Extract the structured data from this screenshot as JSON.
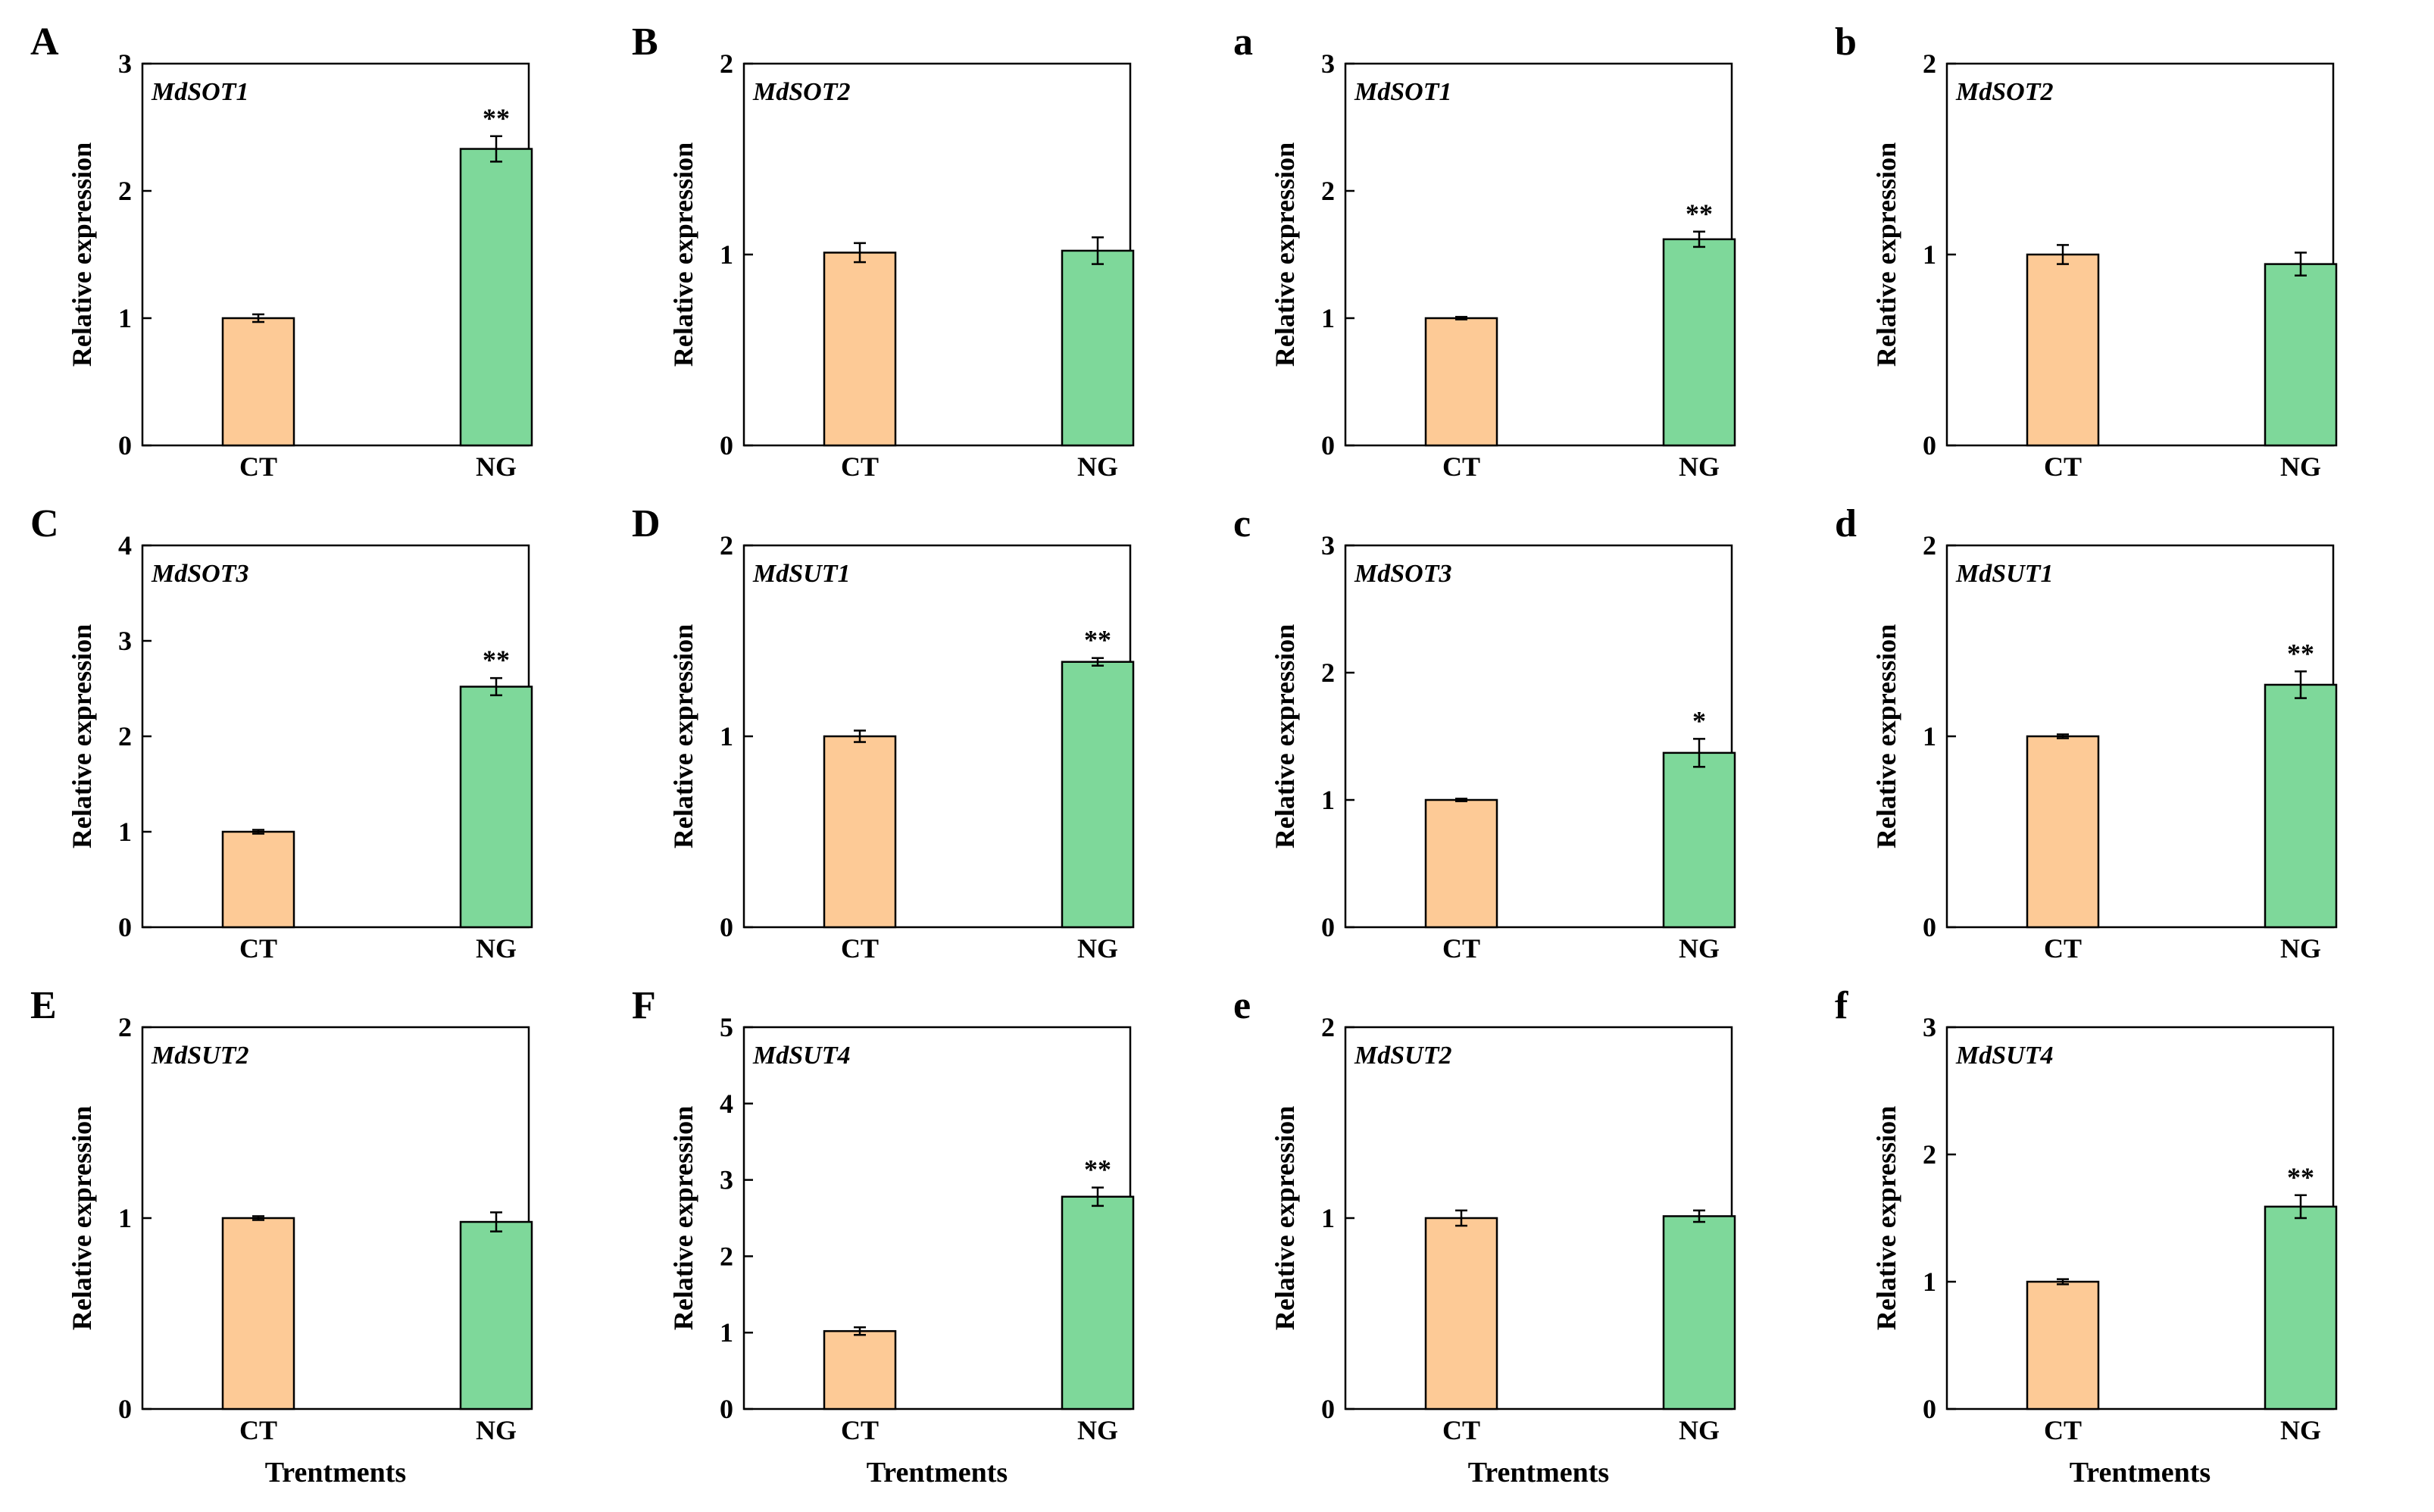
{
  "figure": {
    "x_axis_title": "Trentments",
    "y_axis_title": "Relative expression",
    "colors": {
      "CT": "#FDCA96",
      "NG": "#7ED89A",
      "edge": "#000000"
    }
  },
  "chart_data": [
    {
      "type": "bar",
      "panel": "A",
      "title": "MdSOT1",
      "categories": [
        "CT",
        "NG"
      ],
      "values": [
        1.0,
        2.33
      ],
      "errors": [
        0.03,
        0.1
      ],
      "significance": [
        "",
        "**"
      ],
      "ylim": [
        0,
        3
      ],
      "yticks": [
        0,
        1,
        2,
        3
      ],
      "xlabel": "",
      "ylabel": "Relative expression"
    },
    {
      "type": "bar",
      "panel": "B",
      "title": "MdSOT2",
      "categories": [
        "CT",
        "NG"
      ],
      "values": [
        1.01,
        1.02
      ],
      "errors": [
        0.05,
        0.07
      ],
      "significance": [
        "",
        ""
      ],
      "ylim": [
        0,
        2
      ],
      "yticks": [
        0,
        1,
        2
      ],
      "xlabel": "",
      "ylabel": "Relative expression"
    },
    {
      "type": "bar",
      "panel": "a",
      "title": "MdSOT1",
      "categories": [
        "CT",
        "NG"
      ],
      "values": [
        1.0,
        1.62
      ],
      "errors": [
        0.01,
        0.06
      ],
      "significance": [
        "",
        "**"
      ],
      "ylim": [
        0,
        3
      ],
      "yticks": [
        0,
        1,
        2,
        3
      ],
      "xlabel": "",
      "ylabel": "Relative expression"
    },
    {
      "type": "bar",
      "panel": "b",
      "title": "MdSOT2",
      "categories": [
        "CT",
        "NG"
      ],
      "values": [
        1.0,
        0.95
      ],
      "errors": [
        0.05,
        0.06
      ],
      "significance": [
        "",
        ""
      ],
      "ylim": [
        0,
        2
      ],
      "yticks": [
        0,
        1,
        2
      ],
      "xlabel": "",
      "ylabel": "Relative expression"
    },
    {
      "type": "bar",
      "panel": "C",
      "title": "MdSOT3",
      "categories": [
        "CT",
        "NG"
      ],
      "values": [
        1.0,
        2.52
      ],
      "errors": [
        0.02,
        0.09
      ],
      "significance": [
        "",
        "**"
      ],
      "ylim": [
        0,
        4
      ],
      "yticks": [
        0,
        1,
        2,
        3,
        4
      ],
      "xlabel": "",
      "ylabel": "Relative expression"
    },
    {
      "type": "bar",
      "panel": "D",
      "title": "MdSUT1",
      "categories": [
        "CT",
        "NG"
      ],
      "values": [
        1.0,
        1.39
      ],
      "errors": [
        0.03,
        0.02
      ],
      "significance": [
        "",
        "**"
      ],
      "ylim": [
        0,
        2
      ],
      "yticks": [
        0,
        1,
        2
      ],
      "xlabel": "",
      "ylabel": "Relative expression"
    },
    {
      "type": "bar",
      "panel": "c",
      "title": "MdSOT3",
      "categories": [
        "CT",
        "NG"
      ],
      "values": [
        1.0,
        1.37
      ],
      "errors": [
        0.01,
        0.11
      ],
      "significance": [
        "",
        "*"
      ],
      "ylim": [
        0,
        3
      ],
      "yticks": [
        0,
        1,
        2,
        3
      ],
      "xlabel": "",
      "ylabel": "Relative expression"
    },
    {
      "type": "bar",
      "panel": "d",
      "title": "MdSUT1",
      "categories": [
        "CT",
        "NG"
      ],
      "values": [
        1.0,
        1.27
      ],
      "errors": [
        0.01,
        0.07
      ],
      "significance": [
        "",
        "**"
      ],
      "ylim": [
        0,
        2
      ],
      "yticks": [
        0,
        1,
        2
      ],
      "xlabel": "",
      "ylabel": "Relative expression"
    },
    {
      "type": "bar",
      "panel": "E",
      "title": "MdSUT2",
      "categories": [
        "CT",
        "NG"
      ],
      "values": [
        1.0,
        0.98
      ],
      "errors": [
        0.01,
        0.05
      ],
      "significance": [
        "",
        ""
      ],
      "ylim": [
        0,
        2
      ],
      "yticks": [
        0,
        1,
        2
      ],
      "xlabel": "Trentments",
      "ylabel": "Relative expression"
    },
    {
      "type": "bar",
      "panel": "F",
      "title": "MdSUT4",
      "categories": [
        "CT",
        "NG"
      ],
      "values": [
        1.02,
        2.78
      ],
      "errors": [
        0.05,
        0.12
      ],
      "significance": [
        "",
        "**"
      ],
      "ylim": [
        0,
        5
      ],
      "yticks": [
        0,
        1,
        2,
        3,
        4,
        5
      ],
      "xlabel": "Trentments",
      "ylabel": "Relative expression"
    },
    {
      "type": "bar",
      "panel": "e",
      "title": "MdSUT2",
      "categories": [
        "CT",
        "NG"
      ],
      "values": [
        1.0,
        1.01
      ],
      "errors": [
        0.04,
        0.03
      ],
      "significance": [
        "",
        ""
      ],
      "ylim": [
        0,
        2
      ],
      "yticks": [
        0,
        1,
        2
      ],
      "xlabel": "Trentments",
      "ylabel": "Relative expression"
    },
    {
      "type": "bar",
      "panel": "f",
      "title": "MdSUT4",
      "categories": [
        "CT",
        "NG"
      ],
      "values": [
        1.0,
        1.59
      ],
      "errors": [
        0.02,
        0.09
      ],
      "significance": [
        "",
        "**"
      ],
      "ylim": [
        0,
        3
      ],
      "yticks": [
        0,
        1,
        2,
        3
      ],
      "xlabel": "Trentments",
      "ylabel": "Relative expression"
    }
  ]
}
